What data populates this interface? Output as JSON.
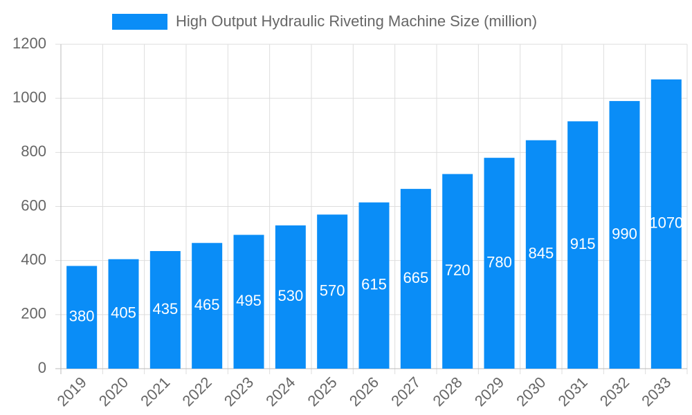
{
  "chart_data": {
    "type": "bar",
    "legend": "High Output Hydraulic Riveting Machine Size (million)",
    "categories": [
      "2019",
      "2020",
      "2021",
      "2022",
      "2023",
      "2024",
      "2025",
      "2026",
      "2027",
      "2028",
      "2029",
      "2030",
      "2031",
      "2032",
      "2033"
    ],
    "values": [
      380,
      405,
      435,
      465,
      495,
      530,
      570,
      615,
      665,
      720,
      780,
      845,
      915,
      990,
      1070
    ],
    "color": "#0a8df7",
    "ylim": [
      0,
      1200
    ],
    "yticks": [
      0,
      200,
      400,
      600,
      800,
      1000,
      1200
    ],
    "grid": true
  }
}
